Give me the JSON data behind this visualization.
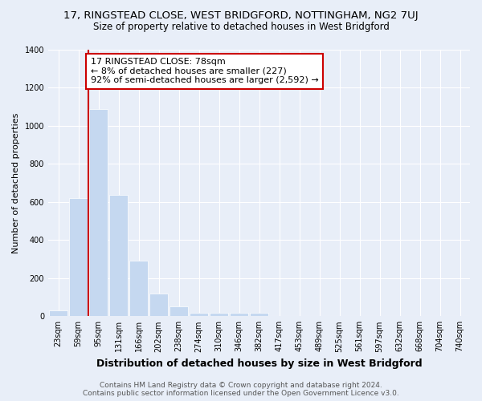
{
  "title": "17, RINGSTEAD CLOSE, WEST BRIDGFORD, NOTTINGHAM, NG2 7UJ",
  "subtitle": "Size of property relative to detached houses in West Bridgford",
  "xlabel": "Distribution of detached houses by size in West Bridgford",
  "ylabel": "Number of detached properties",
  "categories": [
    "23sqm",
    "59sqm",
    "95sqm",
    "131sqm",
    "166sqm",
    "202sqm",
    "238sqm",
    "274sqm",
    "310sqm",
    "346sqm",
    "382sqm",
    "417sqm",
    "453sqm",
    "489sqm",
    "525sqm",
    "561sqm",
    "597sqm",
    "632sqm",
    "668sqm",
    "704sqm",
    "740sqm"
  ],
  "bar_values": [
    30,
    620,
    1085,
    635,
    290,
    120,
    50,
    20,
    20,
    20,
    20,
    0,
    0,
    0,
    0,
    0,
    0,
    0,
    0,
    0,
    0
  ],
  "bar_color": "#c5d8f0",
  "bar_edgecolor": "#c5d8f0",
  "property_line_color": "#cc0000",
  "annotation_text": "17 RINGSTEAD CLOSE: 78sqm\n← 8% of detached houses are smaller (227)\n92% of semi-detached houses are larger (2,592) →",
  "annotation_box_edgecolor": "#cc0000",
  "annotation_box_facecolor": "#ffffff",
  "ylim": [
    0,
    1400
  ],
  "background_color": "#e8eef8",
  "plot_bg_color": "#e8eef8",
  "footer_line1": "Contains HM Land Registry data © Crown copyright and database right 2024.",
  "footer_line2": "Contains public sector information licensed under the Open Government Licence v3.0.",
  "title_fontsize": 9.5,
  "subtitle_fontsize": 8.5,
  "xlabel_fontsize": 9,
  "ylabel_fontsize": 8,
  "tick_fontsize": 7,
  "annotation_fontsize": 8,
  "footer_fontsize": 6.5
}
